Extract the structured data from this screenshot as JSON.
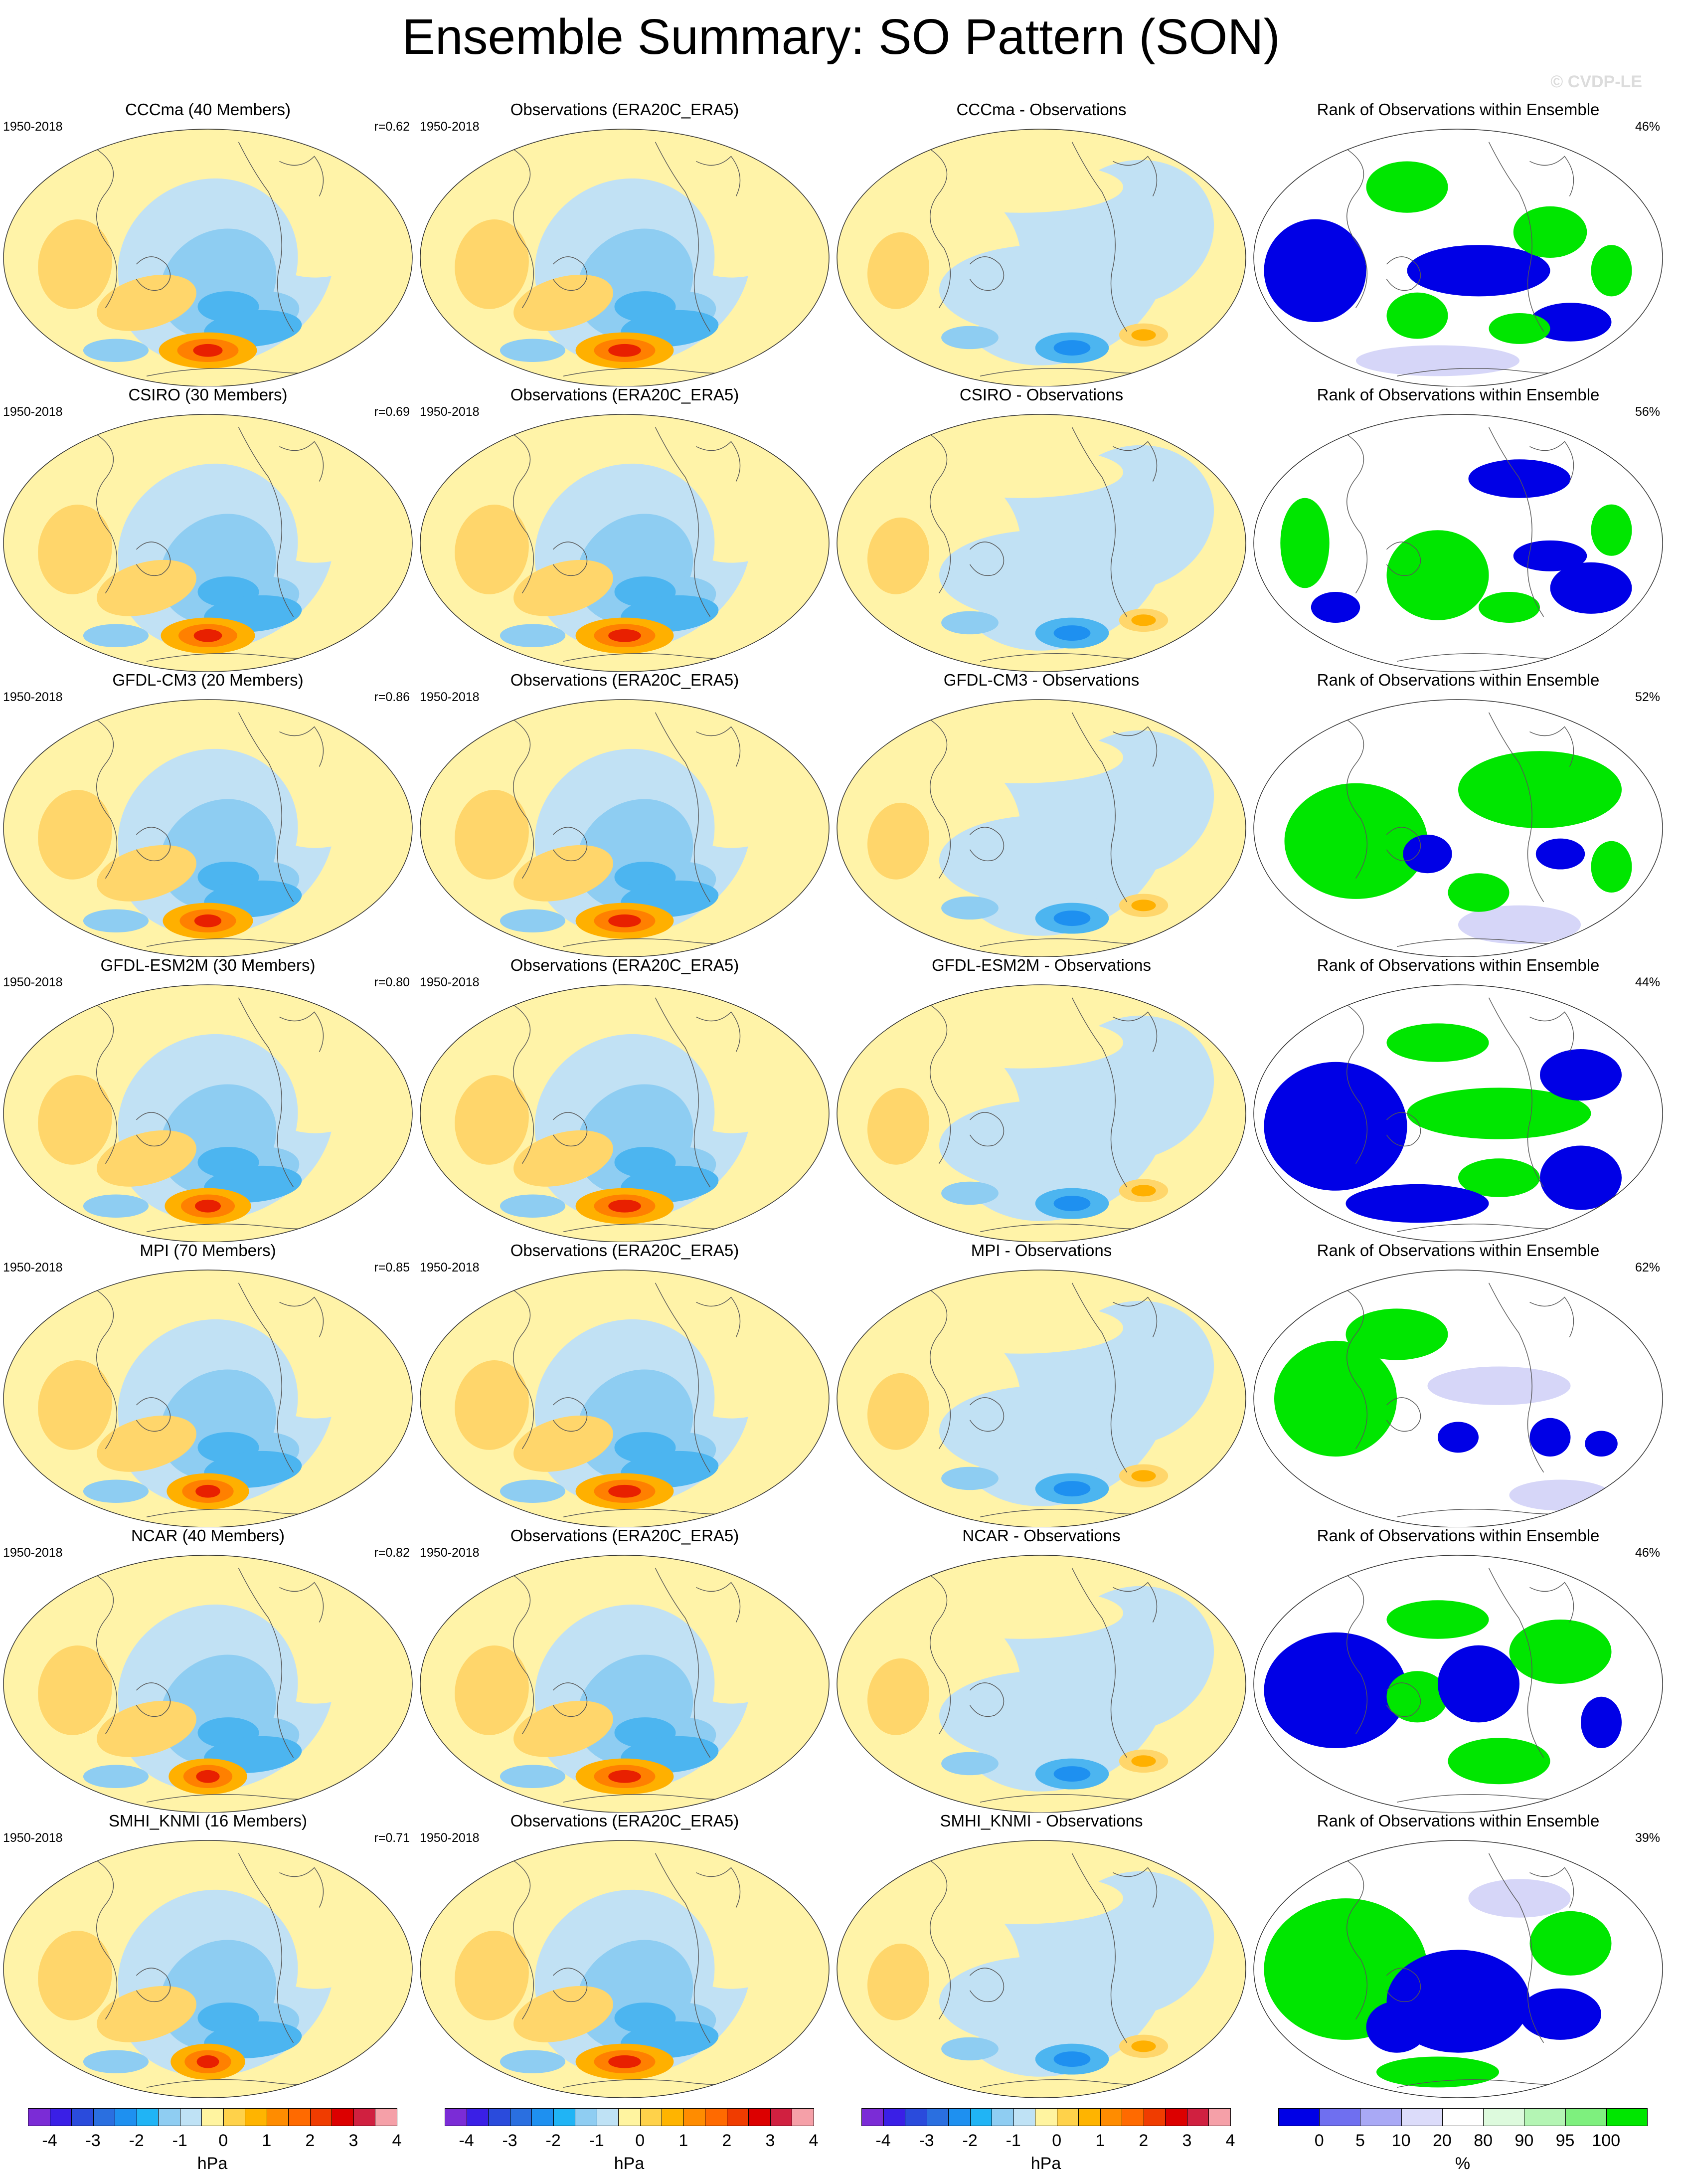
{
  "title": "Ensemble Summary: SO Pattern (SON)",
  "watermark": "© CVDP-LE",
  "obs_title": "Observations (ERA20C_ERA5)",
  "rank_title": "Rank of Observations within Ensemble",
  "period": "1950-2018",
  "rows": [
    {
      "model_title": "CCCma (40 Members)",
      "r": "r=0.62",
      "diff_title": "CCCma - Observations",
      "rank_pct": "46%"
    },
    {
      "model_title": "CSIRO (30 Members)",
      "r": "r=0.69",
      "diff_title": "CSIRO - Observations",
      "rank_pct": "56%"
    },
    {
      "model_title": "GFDL-CM3 (20 Members)",
      "r": "r=0.86",
      "diff_title": "GFDL-CM3 - Observations",
      "rank_pct": "52%"
    },
    {
      "model_title": "GFDL-ESM2M (30 Members)",
      "r": "r=0.80",
      "diff_title": "GFDL-ESM2M - Observations",
      "rank_pct": "44%"
    },
    {
      "model_title": "MPI (70 Members)",
      "r": "r=0.85",
      "diff_title": "MPI - Observations",
      "rank_pct": "62%"
    },
    {
      "model_title": "NCAR (40 Members)",
      "r": "r=0.82",
      "diff_title": "NCAR - Observations",
      "rank_pct": "46%"
    },
    {
      "model_title": "SMHI_KNMI (16 Members)",
      "r": "r=0.71",
      "diff_title": "SMHI_KNMI - Observations",
      "rank_pct": "39%"
    }
  ],
  "pressure_colorbar": {
    "unit": "hPa",
    "ticks": [
      "-4",
      "-3",
      "-2",
      "-1",
      "0",
      "1",
      "2",
      "3",
      "4"
    ],
    "colors": [
      "#7b2cd6",
      "#3a1fe6",
      "#2a4bdc",
      "#2a6fe0",
      "#1e90f0",
      "#20b4f5",
      "#8fcdf2",
      "#bfe2f5",
      "#fff4a0",
      "#ffd24a",
      "#ffb400",
      "#ff8c00",
      "#ff6a00",
      "#f03c00",
      "#dc0000",
      "#d02040",
      "#f5a0a8"
    ]
  },
  "rank_colorbar": {
    "unit": "%",
    "ticks": [
      "0",
      "5",
      "10",
      "20",
      "80",
      "90",
      "95",
      "100"
    ],
    "colors": [
      "#0000e6",
      "#6f6ff0",
      "#a9a9f5",
      "#dcdcfa",
      "#ffffff",
      "#ddfadd",
      "#b4f5b4",
      "#7ef07e",
      "#00e600"
    ]
  },
  "map_colors": {
    "blue_light": "#c1e1f4",
    "blue_mid": "#8ecdf2",
    "blue_strong": "#4cb5f0",
    "blue_deep": "#1e90f0",
    "yellow_light": "#fff3a8",
    "yellow_mid": "#ffd66b",
    "orange": "#ffb000",
    "orange_deep": "#ff8000",
    "red": "#e82000",
    "rank_blue": "#0000e6",
    "rank_lavender": "#d6d6f8",
    "rank_green": "#00e600",
    "rank_green_pale": "#e0fae0"
  }
}
